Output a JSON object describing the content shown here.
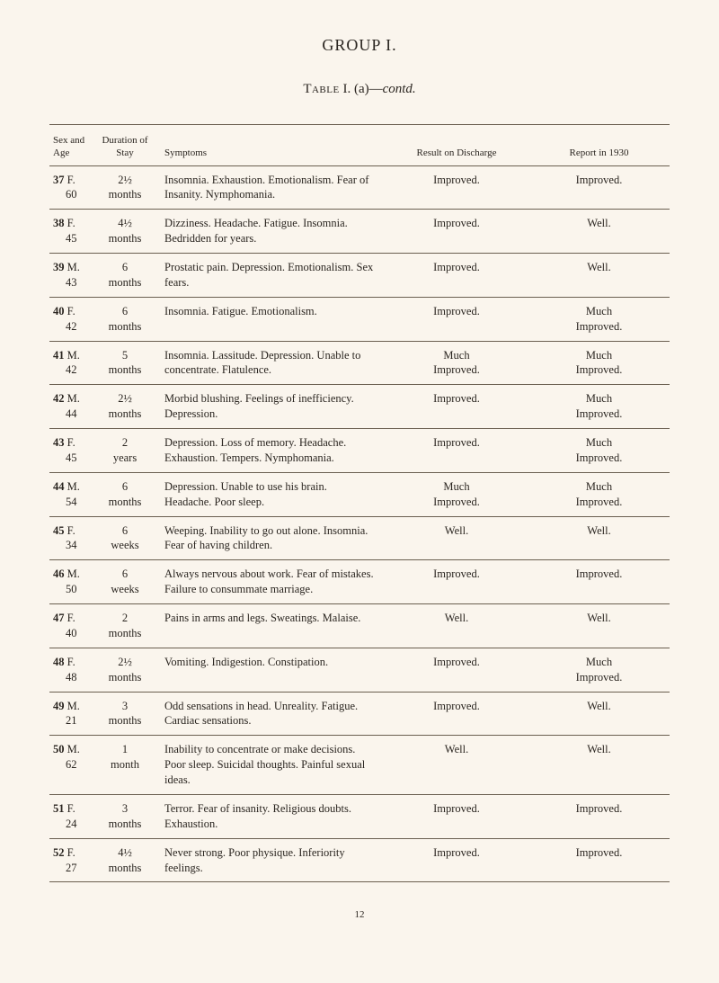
{
  "heading": "GROUP I.",
  "subheading_table": "Table",
  "subheading_num": " I. (a)—",
  "subheading_contd": "contd.",
  "columns": {
    "sexage": "Sex\nand\nAge",
    "duration": "Duration\nof Stay",
    "symptoms": "Symptoms",
    "result": "Result on Discharge",
    "report": "Report in 1930"
  },
  "rows": [
    {
      "num": "37",
      "sex": "F.",
      "age": "60",
      "dur": "2½\nmonths",
      "symp": "Insomnia.  Exhaustion.  Emotion­alism.  Fear of Insanity.  Nymphomania.",
      "result": "Improved.",
      "report": "Improved."
    },
    {
      "num": "38",
      "sex": "F.",
      "age": "45",
      "dur": "4½\nmonths",
      "symp": "Dizziness.  Headache.  Fatigue.  Insomnia.  Bedridden for years.",
      "result": "Improved.",
      "report": "Well."
    },
    {
      "num": "39",
      "sex": "M.",
      "age": "43",
      "dur": "6\nmonths",
      "symp": "Prostatic pain.  Depression.  Emotionalism.  Sex fears.",
      "result": "Improved.",
      "report": "Well."
    },
    {
      "num": "40",
      "sex": "F.",
      "age": "42",
      "dur": "6\nmonths",
      "symp": "Insomnia.  Fatigue.  Emotionalism.",
      "result": "Improved.",
      "report": "Much\nImproved."
    },
    {
      "num": "41",
      "sex": "M.",
      "age": "42",
      "dur": "5\nmonths",
      "symp": "Insomnia.  Lassitude.  Depression.  Unable to concentrate.  Flatulence.",
      "result": "Much\nImproved.",
      "report": "Much\nImproved."
    },
    {
      "num": "42",
      "sex": "M.",
      "age": "44",
      "dur": "2½\nmonths",
      "symp": "Morbid blushing.  Feelings of in­efficiency.  Depression.",
      "result": "Improved.",
      "report": "Much\nImproved."
    },
    {
      "num": "43",
      "sex": "F.",
      "age": "45",
      "dur": "2\nyears",
      "symp": "Depression.  Loss of memory.  Head­ache.  Exhaustion.  Tempers.  Nymphomania.",
      "result": "Improved.",
      "report": "Much\nImproved."
    },
    {
      "num": "44",
      "sex": "M.",
      "age": "54",
      "dur": "6\nmonths",
      "symp": "Depression.  Unable to use his brain.  Headache.  Poor sleep.",
      "result": "Much\nImproved.",
      "report": "Much\nImproved."
    },
    {
      "num": "45",
      "sex": "F.",
      "age": "34",
      "dur": "6\nweeks",
      "symp": "Weeping.  Inability to go out alone.  Insomnia.  Fear of having children.",
      "result": "Well.",
      "report": "Well."
    },
    {
      "num": "46",
      "sex": "M.",
      "age": "50",
      "dur": "6\nweeks",
      "symp": "Always nervous about work.  Fear of mistakes.  Failure to consummate marriage.",
      "result": "Improved.",
      "report": "Improved."
    },
    {
      "num": "47",
      "sex": "F.",
      "age": "40",
      "dur": "2\nmonths",
      "symp": "Pains in arms and legs.  Sweatings.  Malaise.",
      "result": "Well.",
      "report": "Well."
    },
    {
      "num": "48",
      "sex": "F.",
      "age": "48",
      "dur": "2½\nmonths",
      "symp": "Vomiting.  Indigestion.  Constipation.",
      "result": "Improved.",
      "report": "Much\nImproved."
    },
    {
      "num": "49",
      "sex": "M.",
      "age": "21",
      "dur": "3\nmonths",
      "symp": "Odd sensations in head.  Unreality.  Fatigue.  Cardiac sensations.",
      "result": "Improved.",
      "report": "Well."
    },
    {
      "num": "50",
      "sex": "M.",
      "age": "62",
      "dur": "1\nmonth",
      "symp": "Inability to concentrate or make decisions.  Poor sleep.  Suicidal thoughts.  Painful sexual ideas.",
      "result": "Well.",
      "report": "Well."
    },
    {
      "num": "51",
      "sex": "F.",
      "age": "24",
      "dur": "3\nmonths",
      "symp": "Terror.  Fear of insanity.  Religious doubts.  Exhaustion.",
      "result": "Improved.",
      "report": "Improved."
    },
    {
      "num": "52",
      "sex": "F.",
      "age": "27",
      "dur": "4½\nmonths",
      "symp": "Never strong.  Poor physique.  Inferiority feelings.",
      "result": "Improved.",
      "report": "Improved."
    }
  ],
  "page_num": "12"
}
